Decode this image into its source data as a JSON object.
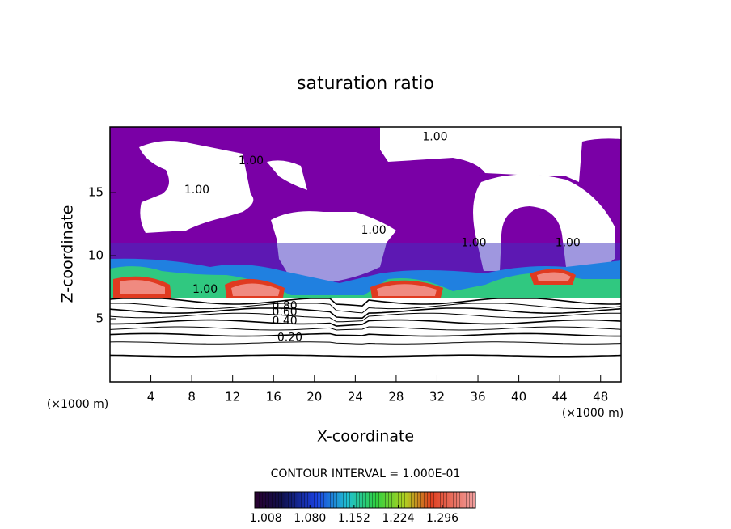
{
  "chart_data": {
    "type": "contour",
    "title": "saturation ratio",
    "x_label": "X-coordinate",
    "y_label": "Z-coordinate",
    "x_unit": "(×1000 m)",
    "y_unit": "(×1000 m)",
    "xlim": [
      0,
      50
    ],
    "xticks": [
      4,
      8,
      12,
      16,
      20,
      24,
      28,
      32,
      36,
      40,
      44,
      48
    ],
    "ylim": [
      0,
      20.2
    ],
    "yticks": [
      5,
      10,
      15
    ],
    "contour_interval": "CONTOUR INTERVAL = 1.000E-01",
    "contour_labels": [
      {
        "value": 1,
        "label": "1.00",
        "x": 8.5,
        "y": 15.2
      },
      {
        "value": 1,
        "label": "1.00",
        "x": 31.8,
        "y": 19.4
      },
      {
        "value": 1,
        "label": "1.00",
        "x": 13.8,
        "y": 17.5
      },
      {
        "value": 1,
        "label": "1.00",
        "x": 25.8,
        "y": 12.0
      },
      {
        "value": 1,
        "label": "1.00",
        "x": 35.6,
        "y": 11.0
      },
      {
        "value": 1,
        "label": "1.00",
        "x": 44.8,
        "y": 11.0
      },
      {
        "value": 1,
        "label": "1.00",
        "x": 9.3,
        "y": 7.3
      },
      {
        "value": 0.8,
        "label": "0.80",
        "x": 17.1,
        "y": 6.0
      },
      {
        "value": 0.6,
        "label": "0.60",
        "x": 17.1,
        "y": 5.5
      },
      {
        "value": 0.4,
        "label": "0.40",
        "x": 17.1,
        "y": 4.8
      },
      {
        "value": 0.2,
        "label": "0.20",
        "x": 17.6,
        "y": 3.5
      }
    ],
    "colorbar": {
      "lim": [
        0.99,
        1.35
      ],
      "ticks": [
        {
          "value": 1.008,
          "label": "1.008"
        },
        {
          "value": 1.08,
          "label": "1.080"
        },
        {
          "value": 1.152,
          "label": "1.152"
        },
        {
          "value": 1.224,
          "label": "1.224"
        },
        {
          "value": 1.296,
          "label": "1.296"
        }
      ]
    }
  }
}
